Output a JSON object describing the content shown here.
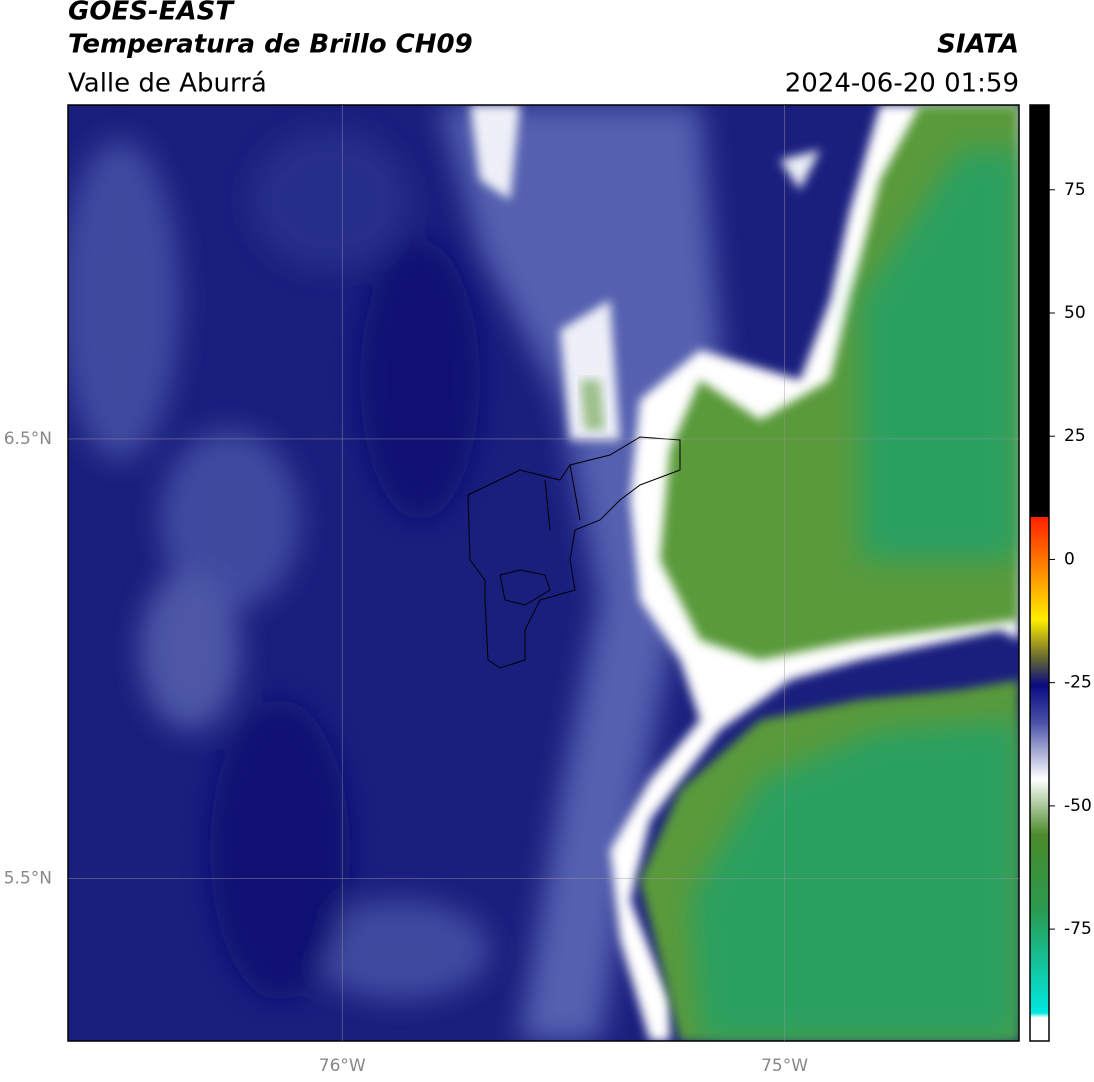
{
  "header": {
    "title": "GOES-EAST",
    "subtitle": "Temperatura de Brillo CH09",
    "region": "Valle de Aburrá",
    "source": "SIATA",
    "datetime": "2024-06-20 01:59"
  },
  "map": {
    "xlim": [
      -76.62,
      -74.47
    ],
    "ylim": [
      5.13,
      7.26
    ],
    "xticks": [
      {
        "value": -76,
        "label": "76°W"
      },
      {
        "value": -75,
        "label": "75°W"
      }
    ],
    "yticks": [
      {
        "value": 6.5,
        "label": "6.5°N"
      },
      {
        "value": 5.5,
        "label": "5.5°N"
      }
    ],
    "grid": true
  },
  "colorbar": {
    "lim": [
      -97.7,
      92.2
    ],
    "ticks": [
      75,
      50,
      25,
      0,
      -25,
      -50,
      -75
    ]
  }
}
